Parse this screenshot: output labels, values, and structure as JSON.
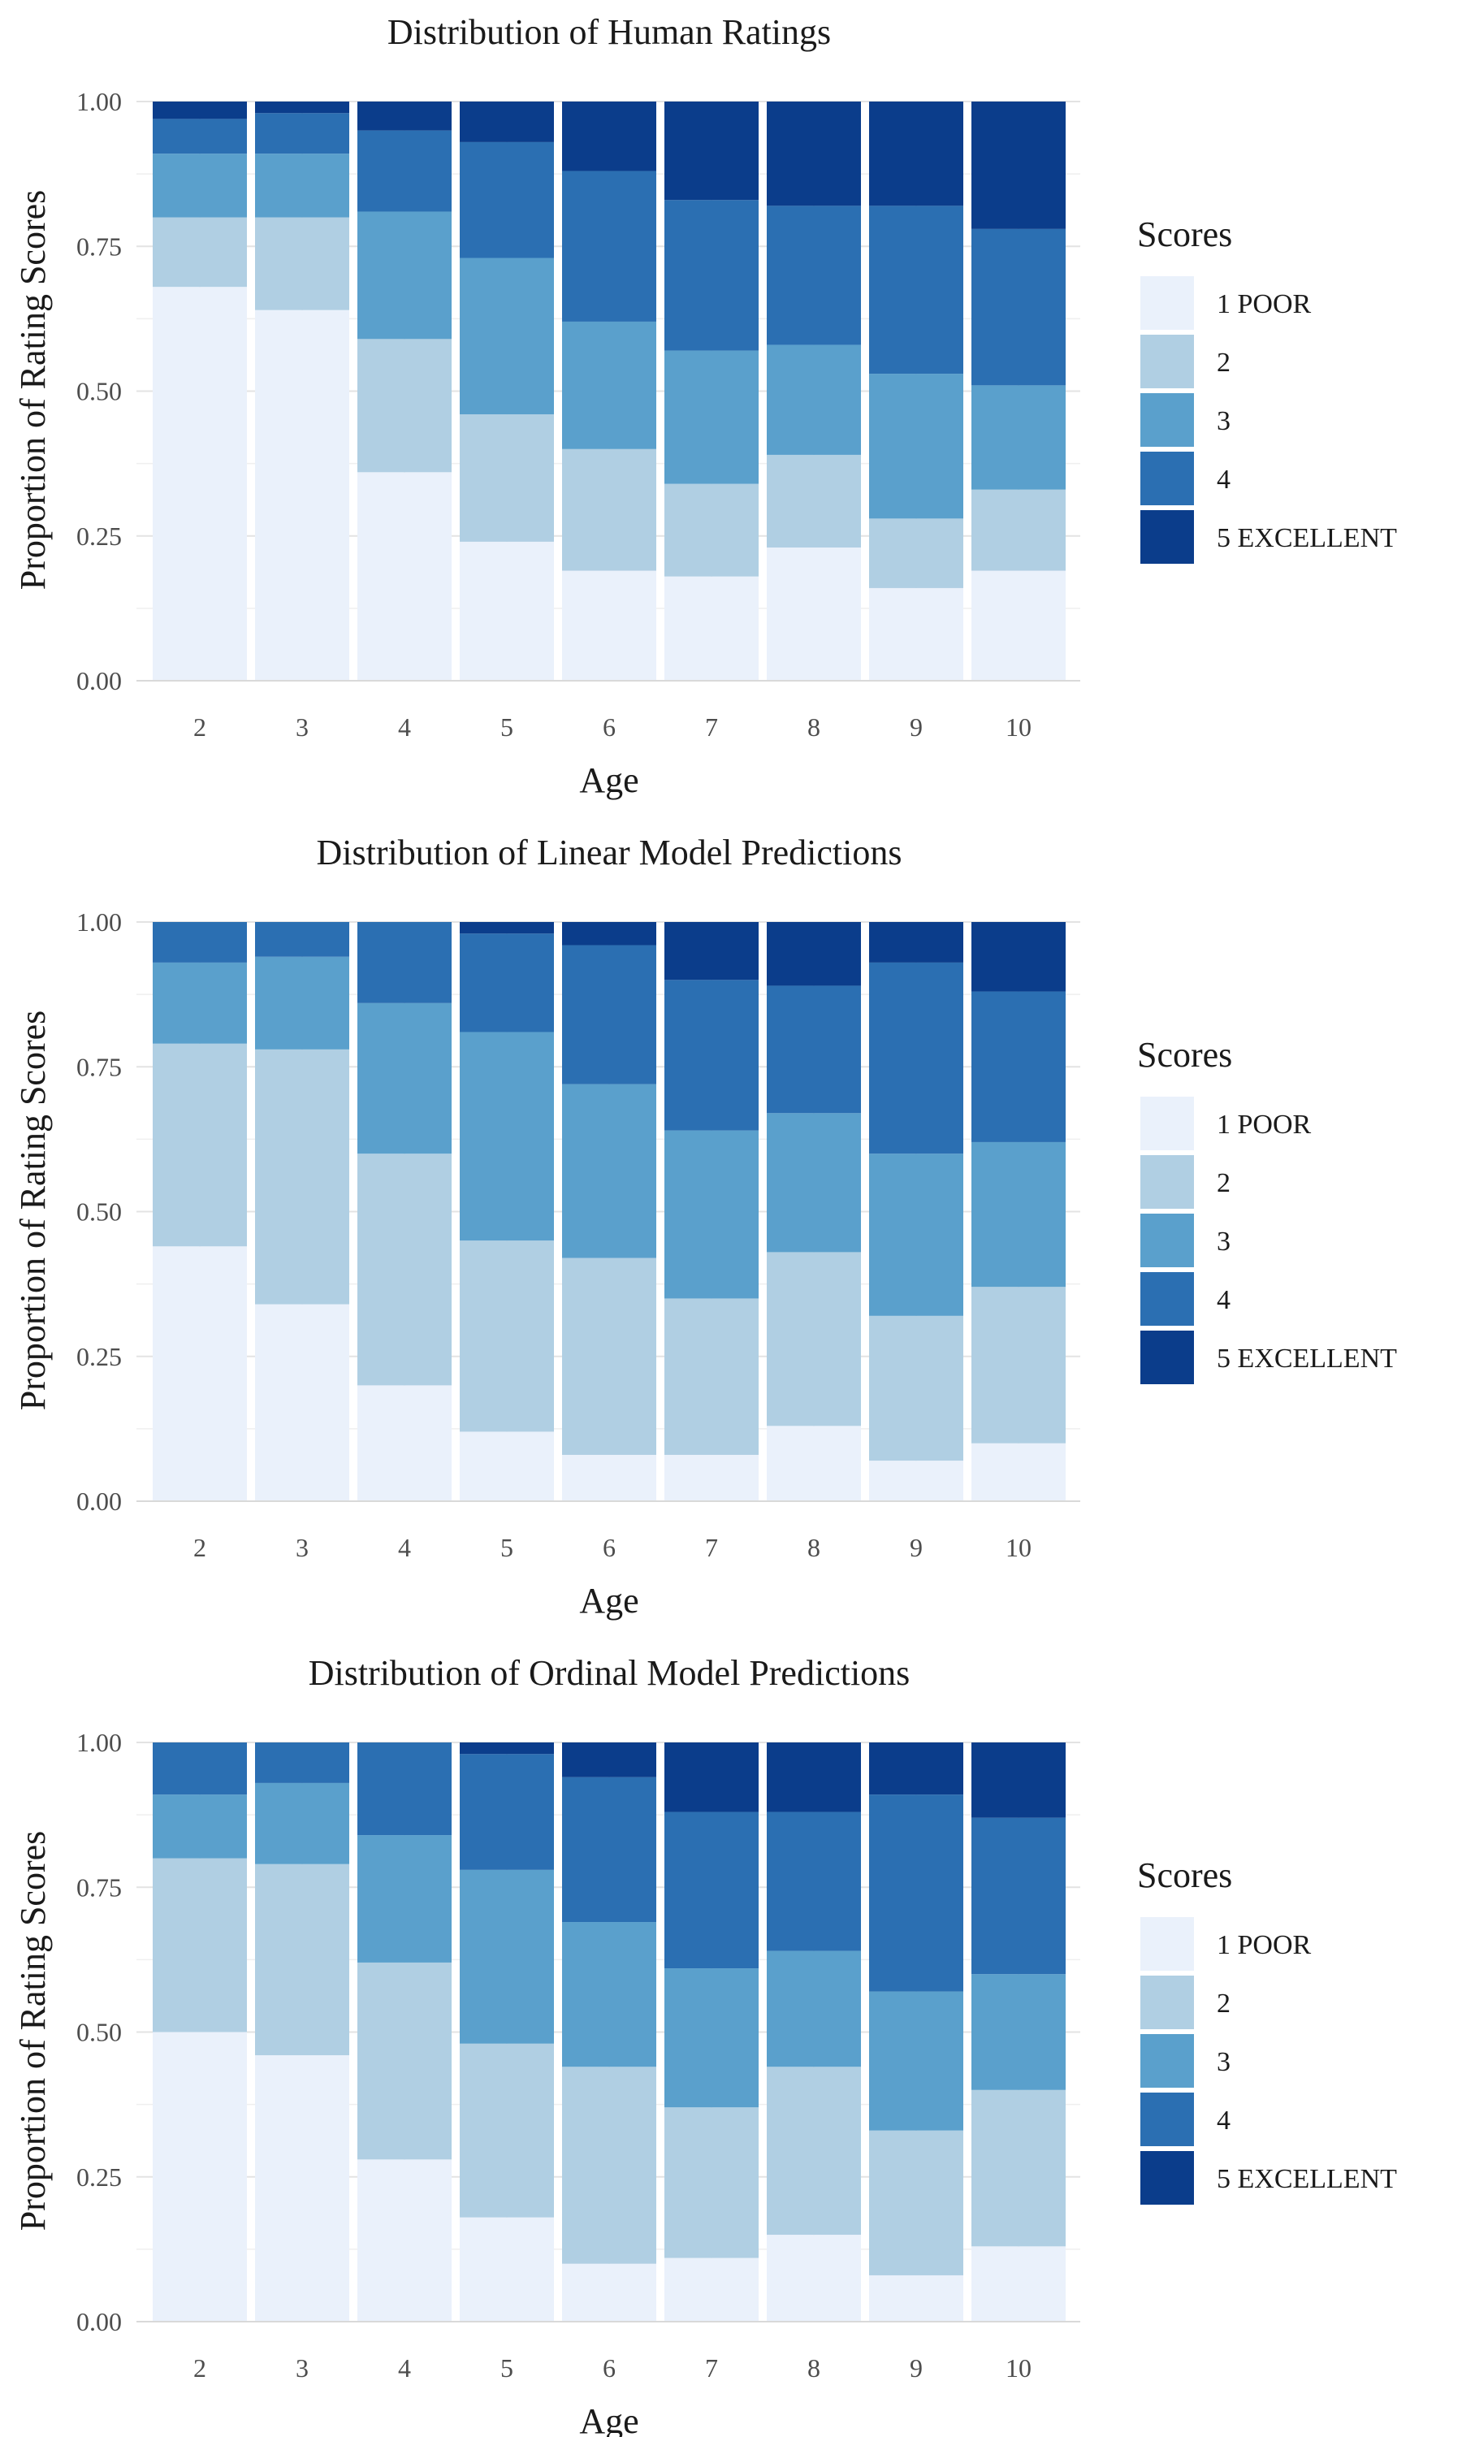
{
  "colors": {
    "1 POOR": "#eaf1fb",
    "2": "#b0cfe3",
    "3": "#5aa0cc",
    "4": "#2b6fb2",
    "5 EXCELLENT": "#0b3d8b"
  },
  "chart_data": [
    {
      "type": "bar",
      "stacked": true,
      "title": "Distribution of Human Ratings",
      "xlabel": "Age",
      "ylabel": "Proportion of Rating Scores",
      "ylim": [
        0,
        1
      ],
      "yticks": [
        "0.00",
        "0.25",
        "0.50",
        "0.75",
        "1.00"
      ],
      "categories": [
        "2",
        "3",
        "4",
        "5",
        "6",
        "7",
        "8",
        "9",
        "10"
      ],
      "legend": {
        "title": "Scores",
        "position": "right"
      },
      "series": [
        {
          "name": "1 POOR",
          "values": [
            0.68,
            0.64,
            0.36,
            0.24,
            0.19,
            0.18,
            0.23,
            0.16,
            0.19
          ]
        },
        {
          "name": "2",
          "values": [
            0.12,
            0.16,
            0.23,
            0.22,
            0.21,
            0.16,
            0.16,
            0.12,
            0.14
          ]
        },
        {
          "name": "3",
          "values": [
            0.11,
            0.11,
            0.22,
            0.27,
            0.22,
            0.23,
            0.19,
            0.25,
            0.18
          ]
        },
        {
          "name": "4",
          "values": [
            0.06,
            0.07,
            0.14,
            0.2,
            0.26,
            0.26,
            0.24,
            0.29,
            0.27
          ]
        },
        {
          "name": "5 EXCELLENT",
          "values": [
            0.03,
            0.02,
            0.05,
            0.07,
            0.12,
            0.17,
            0.18,
            0.18,
            0.22
          ]
        }
      ]
    },
    {
      "type": "bar",
      "stacked": true,
      "title": "Distribution of Linear Model Predictions",
      "xlabel": "Age",
      "ylabel": "Proportion of Rating Scores",
      "ylim": [
        0,
        1
      ],
      "yticks": [
        "0.00",
        "0.25",
        "0.50",
        "0.75",
        "1.00"
      ],
      "categories": [
        "2",
        "3",
        "4",
        "5",
        "6",
        "7",
        "8",
        "9",
        "10"
      ],
      "legend": {
        "title": "Scores",
        "position": "right"
      },
      "series": [
        {
          "name": "1 POOR",
          "values": [
            0.44,
            0.34,
            0.2,
            0.12,
            0.08,
            0.08,
            0.13,
            0.07,
            0.1
          ]
        },
        {
          "name": "2",
          "values": [
            0.35,
            0.44,
            0.4,
            0.33,
            0.34,
            0.27,
            0.3,
            0.25,
            0.27
          ]
        },
        {
          "name": "3",
          "values": [
            0.14,
            0.16,
            0.26,
            0.36,
            0.3,
            0.29,
            0.24,
            0.28,
            0.25
          ]
        },
        {
          "name": "4",
          "values": [
            0.07,
            0.06,
            0.14,
            0.17,
            0.24,
            0.26,
            0.22,
            0.33,
            0.26
          ]
        },
        {
          "name": "5 EXCELLENT",
          "values": [
            0.0,
            0.0,
            0.0,
            0.02,
            0.04,
            0.1,
            0.11,
            0.07,
            0.12
          ]
        }
      ]
    },
    {
      "type": "bar",
      "stacked": true,
      "title": "Distribution of Ordinal Model Predictions",
      "xlabel": "Age",
      "ylabel": "Proportion of Rating Scores",
      "ylim": [
        0,
        1
      ],
      "yticks": [
        "0.00",
        "0.25",
        "0.50",
        "0.75",
        "1.00"
      ],
      "categories": [
        "2",
        "3",
        "4",
        "5",
        "6",
        "7",
        "8",
        "9",
        "10"
      ],
      "legend": {
        "title": "Scores",
        "position": "right"
      },
      "series": [
        {
          "name": "1 POOR",
          "values": [
            0.5,
            0.46,
            0.28,
            0.18,
            0.1,
            0.11,
            0.15,
            0.08,
            0.13
          ]
        },
        {
          "name": "2",
          "values": [
            0.3,
            0.33,
            0.34,
            0.3,
            0.34,
            0.26,
            0.29,
            0.25,
            0.27
          ]
        },
        {
          "name": "3",
          "values": [
            0.11,
            0.14,
            0.22,
            0.3,
            0.25,
            0.24,
            0.2,
            0.24,
            0.2
          ]
        },
        {
          "name": "4",
          "values": [
            0.09,
            0.07,
            0.16,
            0.2,
            0.25,
            0.27,
            0.24,
            0.34,
            0.27
          ]
        },
        {
          "name": "5 EXCELLENT",
          "values": [
            0.0,
            0.0,
            0.0,
            0.02,
            0.06,
            0.12,
            0.12,
            0.09,
            0.13
          ]
        }
      ]
    }
  ]
}
